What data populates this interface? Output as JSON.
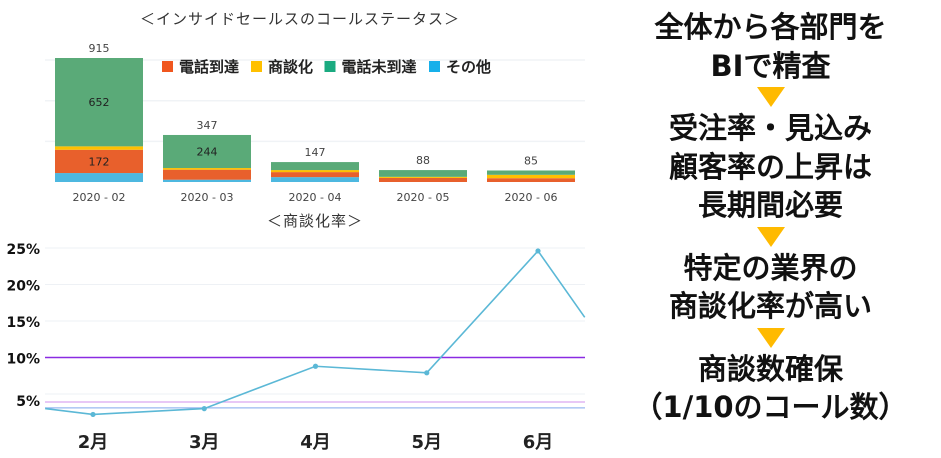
{
  "chart_data": [
    {
      "type": "bar",
      "stacked": true,
      "title": "＜インサイドセールスのコールステータス＞",
      "categories": [
        "2020 - 02",
        "2020 - 03",
        "2020 - 04",
        "2020 - 05",
        "2020 - 06"
      ],
      "series": [
        {
          "name": "その他",
          "color": "#4db8e0",
          "values": [
            66,
            17,
            36,
            0,
            0
          ]
        },
        {
          "name": "電話到達",
          "color": "#e8602c",
          "values": [
            172,
            74,
            37,
            30,
            28
          ]
        },
        {
          "name": "商談化",
          "color": "#ffc000",
          "values": [
            25,
            12,
            15,
            8,
            25
          ]
        },
        {
          "name": "電話未到達",
          "color": "#5aaa78",
          "values": [
            652,
            244,
            59,
            50,
            32
          ]
        }
      ],
      "legend_order": [
        "電話到達",
        "商談化",
        "電話未到達",
        "その他"
      ],
      "legend_colors": {
        "電話到達": "#f0561e",
        "商談化": "#ffc000",
        "電話未到達": "#1aaa80",
        "その他": "#17b0ea"
      },
      "totals": [
        "915",
        "347",
        "147",
        "88",
        "85"
      ],
      "segment_labels": [
        {
          "category": "2020 - 02",
          "series": "電話未到達",
          "text": "652"
        },
        {
          "category": "2020 - 02",
          "series": "電話到達",
          "text": "172"
        },
        {
          "category": "2020 - 03",
          "series": "電話未到達",
          "text": "244"
        }
      ],
      "ylim": [
        0,
        915
      ],
      "legend_placement": "top-right",
      "grid": true
    },
    {
      "type": "line",
      "title": "＜商談化率＞",
      "x_tick_labels": [
        "2月",
        "3月",
        "4月",
        "5月",
        "6月"
      ],
      "x_ticks": [
        2,
        3,
        4,
        5,
        6
      ],
      "y_tick_labels": [
        "25%",
        "20%",
        "15%",
        "10%",
        "5%"
      ],
      "y_ticks": [
        25,
        20,
        15,
        10,
        5
      ],
      "xlim": [
        1.57,
        6.42
      ],
      "ylim": [
        1.5,
        25
      ],
      "series": [
        {
          "color": "#5bb8d6",
          "points": [
            [
              1.57,
              3.0
            ],
            [
              2,
              2.2
            ],
            [
              3,
              3.0
            ],
            [
              4,
              8.8
            ],
            [
              5,
              7.9
            ],
            [
              6,
              24.6
            ],
            [
              6.42,
              15.5
            ]
          ]
        }
      ],
      "reference_lines": [
        {
          "value": 10,
          "color": "#8a2be2"
        },
        {
          "value": 3.9,
          "color": "#d9a8f0"
        },
        {
          "value": 3.1,
          "color": "#9ab8f0"
        }
      ],
      "grid": true
    }
  ],
  "notes": {
    "lines1": [
      "全体から各部門を",
      "BIで精査"
    ],
    "lines2": [
      "受注率・見込み",
      "顧客率の上昇は",
      "長期間必要"
    ],
    "lines3": [
      "特定の業界の",
      "商談化率が高い"
    ],
    "lines4": [
      "商談数確保",
      "（1/10のコール数）"
    ],
    "arrow_color": "#ffba00"
  }
}
